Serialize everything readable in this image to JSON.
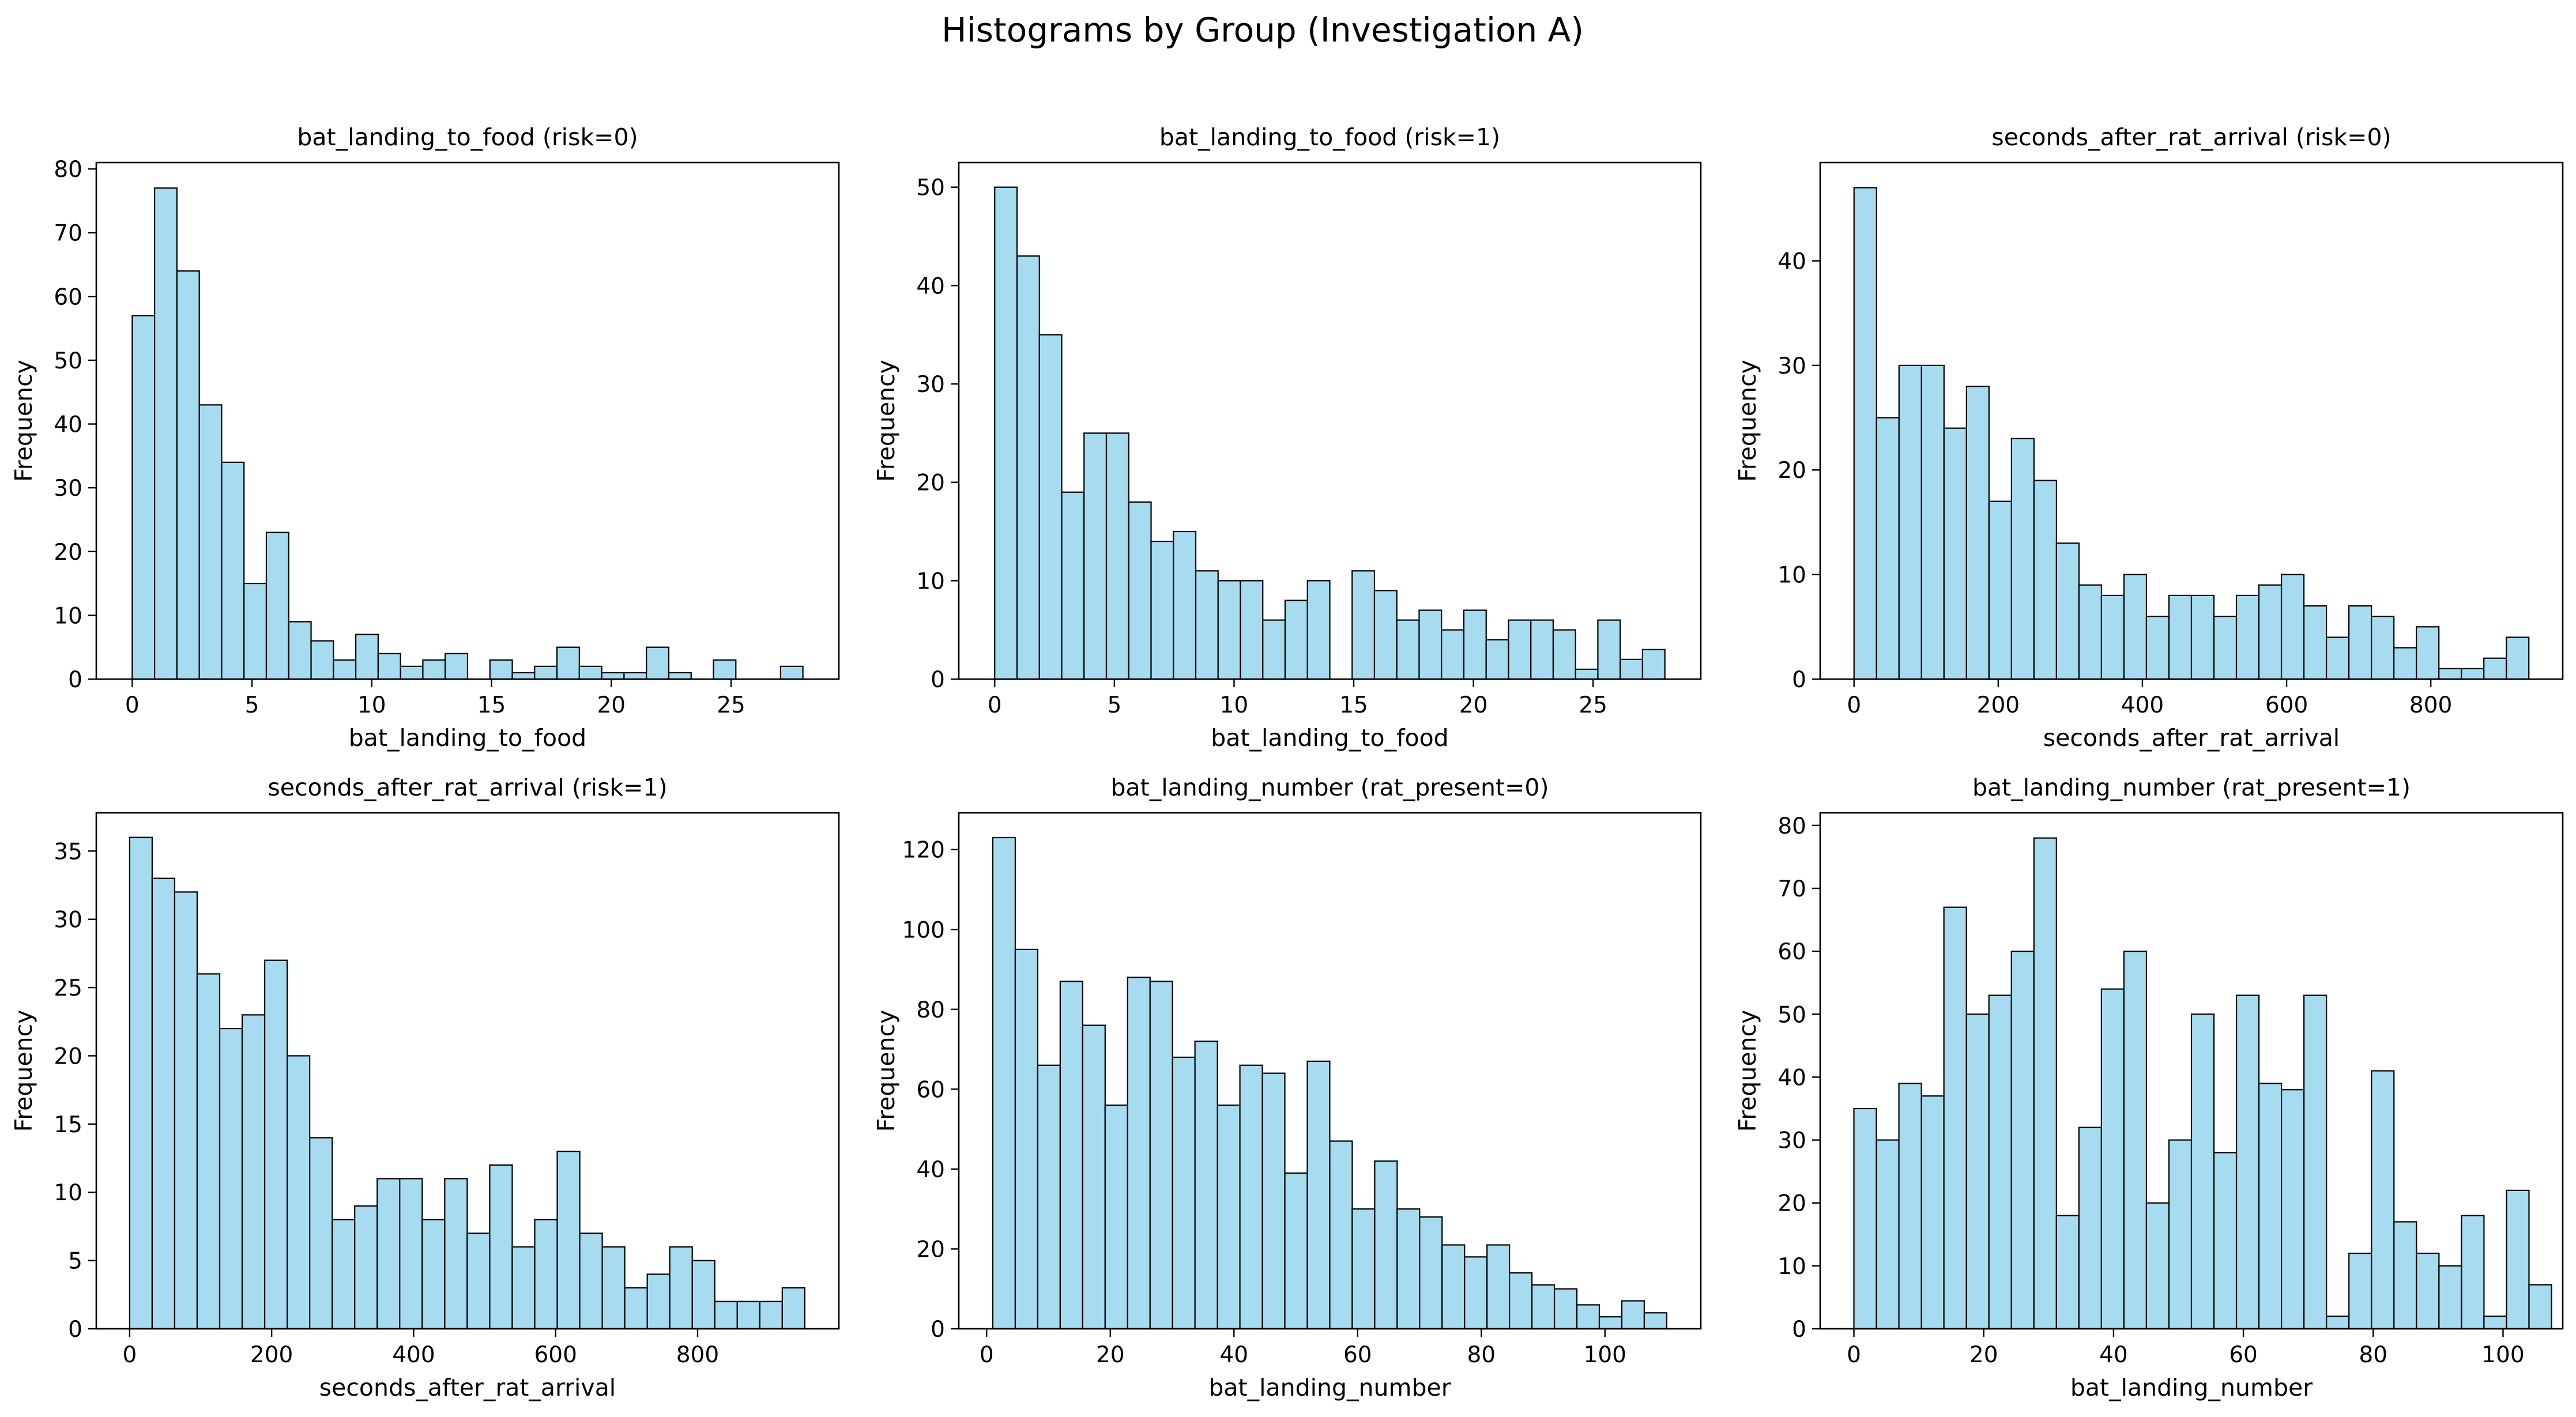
{
  "figure": {
    "title": "Histograms by Group (Investigation A)",
    "bar_color": "#a6dbf0",
    "edge_color": "#000000"
  },
  "chart_data": [
    {
      "type": "bar",
      "title": "bat_landing_to_food (risk=0)",
      "xlabel": "bat_landing_to_food",
      "ylabel": "Frequency",
      "bin_start": 0,
      "bin_width": 0.9333,
      "values": [
        57,
        77,
        64,
        43,
        34,
        15,
        23,
        9,
        6,
        3,
        7,
        4,
        2,
        3,
        4,
        0,
        3,
        1,
        2,
        5,
        2,
        1,
        1,
        5,
        1,
        0,
        3,
        0,
        0,
        2
      ],
      "xlim": [
        -1.5,
        29.5
      ],
      "ylim": [
        0,
        81
      ],
      "xticks": [
        0,
        5,
        10,
        15,
        20,
        25
      ],
      "yticks": [
        0,
        10,
        20,
        30,
        40,
        50,
        60,
        70,
        80
      ],
      "grid": false
    },
    {
      "type": "bar",
      "title": "bat_landing_to_food (risk=1)",
      "xlabel": "bat_landing_to_food",
      "ylabel": "Frequency",
      "bin_start": 0,
      "bin_width": 0.9333,
      "values": [
        50,
        43,
        35,
        19,
        25,
        25,
        18,
        14,
        15,
        11,
        10,
        10,
        6,
        8,
        10,
        0,
        11,
        9,
        6,
        7,
        5,
        7,
        4,
        6,
        6,
        5,
        1,
        6,
        2,
        3
      ],
      "xlim": [
        -1.5,
        29.5
      ],
      "ylim": [
        0,
        52.5
      ],
      "xticks": [
        0,
        5,
        10,
        15,
        20,
        25
      ],
      "yticks": [
        0,
        10,
        20,
        30,
        40,
        50
      ],
      "grid": false
    },
    {
      "type": "bar",
      "title": "seconds_after_rat_arrival (risk=0)",
      "xlabel": "seconds_after_rat_arrival",
      "ylabel": "Frequency",
      "bin_start": 0,
      "bin_width": 31.2,
      "values": [
        47,
        25,
        30,
        30,
        24,
        28,
        17,
        23,
        19,
        13,
        9,
        8,
        10,
        6,
        8,
        8,
        6,
        8,
        9,
        10,
        7,
        4,
        7,
        6,
        3,
        5,
        1,
        1,
        2,
        4
      ],
      "xlim": [
        -47,
        983
      ],
      "ylim": [
        0,
        49.4
      ],
      "xticks": [
        0,
        200,
        400,
        600,
        800
      ],
      "yticks": [
        0,
        10,
        20,
        30,
        40
      ],
      "grid": false
    },
    {
      "type": "bar",
      "title": "seconds_after_rat_arrival (risk=1)",
      "xlabel": "seconds_after_rat_arrival",
      "ylabel": "Frequency",
      "bin_start": 0,
      "bin_width": 31.7,
      "values": [
        36,
        33,
        32,
        26,
        22,
        23,
        27,
        20,
        14,
        8,
        9,
        11,
        11,
        8,
        11,
        7,
        12,
        6,
        8,
        13,
        7,
        6,
        3,
        4,
        6,
        5,
        2,
        2,
        2,
        3
      ],
      "xlim": [
        -47,
        999
      ],
      "ylim": [
        0,
        37.8
      ],
      "xticks": [
        0,
        200,
        400,
        600,
        800
      ],
      "yticks": [
        0,
        5,
        10,
        15,
        20,
        25,
        30,
        35
      ],
      "grid": false
    },
    {
      "type": "bar",
      "title": "bat_landing_number (rat_present=0)",
      "xlabel": "bat_landing_number",
      "ylabel": "Frequency",
      "bin_start": 1,
      "bin_width": 3.633,
      "values": [
        123,
        95,
        66,
        87,
        76,
        56,
        88,
        87,
        68,
        72,
        56,
        66,
        64,
        39,
        67,
        47,
        30,
        42,
        30,
        28,
        21,
        18,
        21,
        14,
        11,
        10,
        6,
        3,
        7,
        4
      ],
      "xlim": [
        -4.5,
        115.5
      ],
      "ylim": [
        0,
        129.2
      ],
      "xticks": [
        0,
        20,
        40,
        60,
        80,
        100
      ],
      "yticks": [
        0,
        20,
        40,
        60,
        80,
        100,
        120
      ],
      "grid": false
    },
    {
      "type": "bar",
      "title": "bat_landing_number (rat_present=1)",
      "xlabel": "bat_landing_number",
      "ylabel": "Frequency",
      "bin_start": 0,
      "bin_width": 3.4667,
      "values": [
        35,
        30,
        39,
        37,
        67,
        50,
        53,
        60,
        78,
        18,
        32,
        54,
        60,
        20,
        30,
        50,
        28,
        53,
        39,
        38,
        53,
        2,
        12,
        41,
        17,
        12,
        10,
        18,
        2,
        22,
        7
      ],
      "xlim": [
        -5.2,
        109.2
      ],
      "ylim": [
        0,
        82
      ],
      "xticks": [
        0,
        20,
        40,
        60,
        80,
        100
      ],
      "yticks": [
        0,
        10,
        20,
        30,
        40,
        50,
        60,
        70,
        80
      ],
      "grid": false
    }
  ]
}
